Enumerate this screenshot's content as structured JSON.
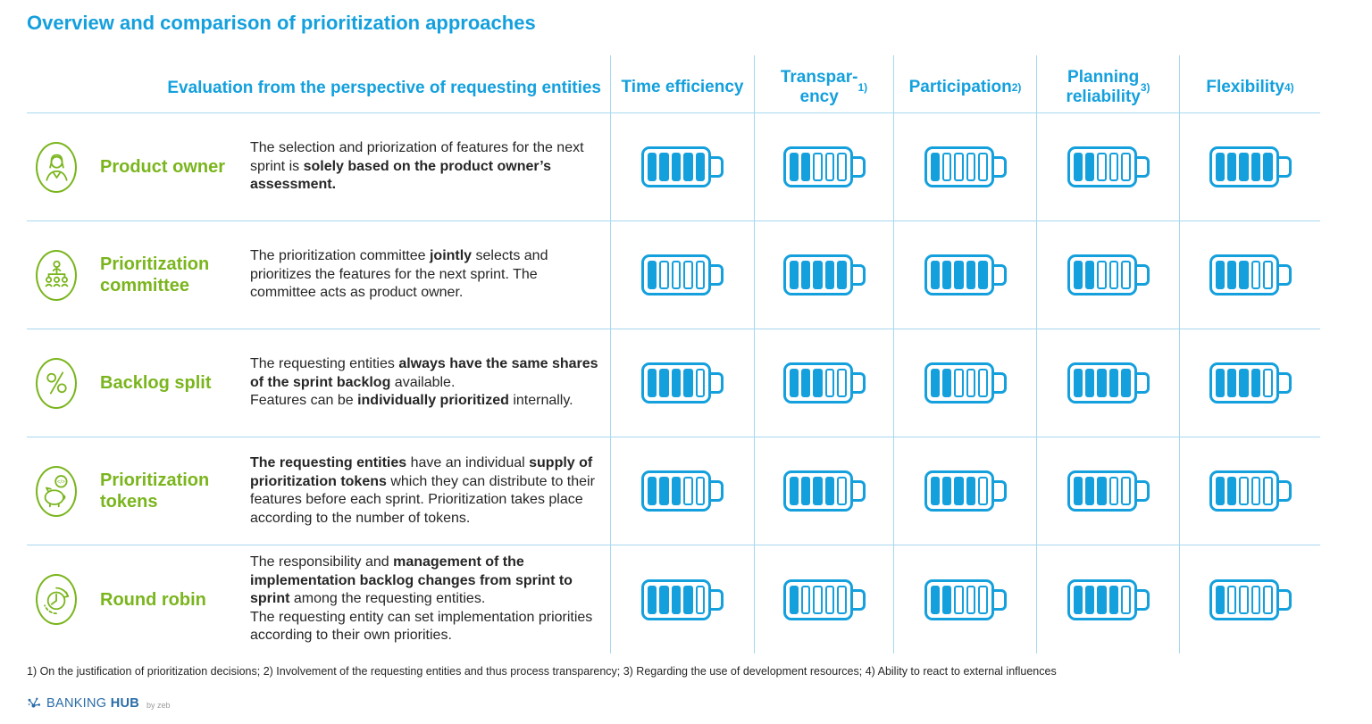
{
  "title": "Overview and comparison of prioritization approaches",
  "header": {
    "left": "Evaluation from the perspective of requesting entities",
    "columns": [
      {
        "label": "Time efficiency",
        "sup": ""
      },
      {
        "label": "Transpar-\nency",
        "sup": "1)"
      },
      {
        "label": "Participation",
        "sup": "2)"
      },
      {
        "label": "Planning\nreliability",
        "sup": "3)"
      },
      {
        "label": "Flexibility",
        "sup": "4)"
      }
    ]
  },
  "rating_max": 5,
  "rows": [
    {
      "icon": "product-owner-icon",
      "name": "Product owner",
      "description": [
        {
          "text": "The selection and priorization of features for the next sprint is "
        },
        {
          "text": "solely based on the product owner’s assessment.",
          "bold": true
        }
      ],
      "ratings": [
        5,
        2,
        1,
        2,
        5
      ]
    },
    {
      "icon": "committee-org-chart-icon",
      "name": "Prioritization committee",
      "description": [
        {
          "text": "The prioritization committee "
        },
        {
          "text": "jointly",
          "bold": true
        },
        {
          "text": " selects and prioritizes the features for the next sprint. The committee acts as product owner."
        }
      ],
      "ratings": [
        1,
        5,
        5,
        2,
        3
      ]
    },
    {
      "icon": "percent-icon",
      "name": "Backlog split",
      "description": [
        {
          "text": "The requesting entities "
        },
        {
          "text": "always have the same shares of the sprint backlog",
          "bold": true
        },
        {
          "text": " available.\nFeatures can be "
        },
        {
          "text": "individually prioritized",
          "bold": true
        },
        {
          "text": " internally."
        }
      ],
      "ratings": [
        4,
        3,
        2,
        5,
        4
      ]
    },
    {
      "icon": "piggy-bank-tokens-icon",
      "name": "Prioritization tokens",
      "description": [
        {
          "text": "The requesting entities",
          "bold": true
        },
        {
          "text": " have an individual "
        },
        {
          "text": "supply of prioritization tokens",
          "bold": true
        },
        {
          "text": " which they can distribute to their features before each sprint. Prioritization takes place according to the number of tokens."
        }
      ],
      "ratings": [
        3,
        4,
        4,
        3,
        2
      ]
    },
    {
      "icon": "clock-cycle-icon",
      "name": "Round robin",
      "description": [
        {
          "text": "The responsibility and "
        },
        {
          "text": "management of the implementation backlog changes from sprint to sprint",
          "bold": true
        },
        {
          "text": " among the requesting entities.\nThe requesting entity can set implementation priorities according to their own priorities."
        }
      ],
      "ratings": [
        4,
        1,
        2,
        4,
        1
      ]
    }
  ],
  "footnote": "1) On the justification of prioritization decisions; 2) Involvement of the requesting entities and thus process transparency; 3) Regarding the use of development resources; 4) Ability to react to external influences",
  "logo": {
    "brand_regular": "BANKING",
    "brand_bold": "HUB",
    "byline": "by zeb"
  },
  "colors": {
    "accent_blue": "#14a0dd",
    "green": "#7ab51d",
    "line_blue": "#a6d8f0",
    "text": "#262626",
    "logo_blue": "#2a6ca6"
  }
}
